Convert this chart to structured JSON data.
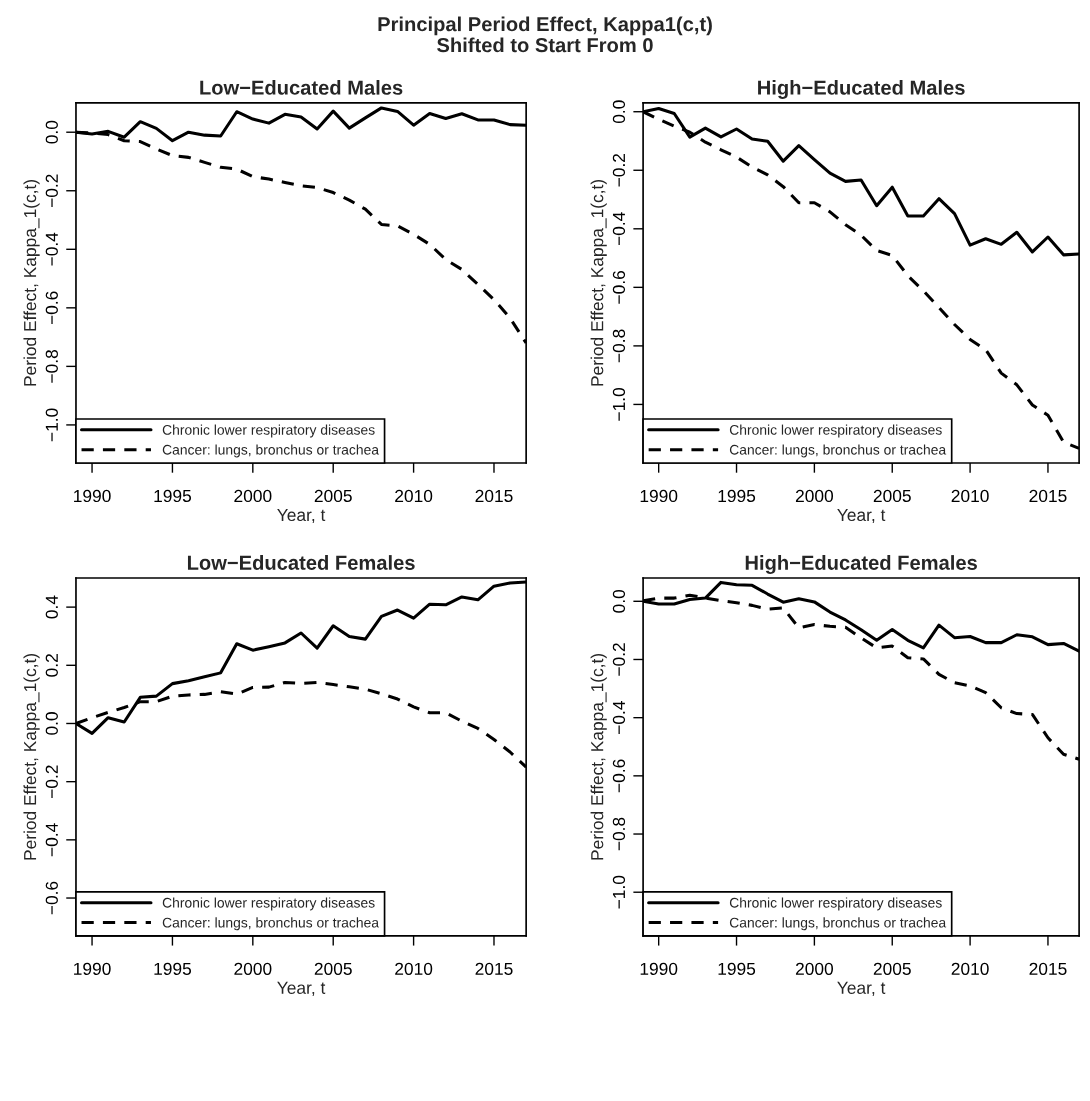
{
  "chart_data": [
    {
      "type": "line",
      "title": "Low−Educated Males",
      "xlabel": "Year, t",
      "ylabel": "Period Effect, Kappa_1(c,t)",
      "annotations": [
        "Principal Period Effect, Kappa1(c,t)\nShifted to Start From 0"
      ],
      "x": [
        1989,
        1990,
        1991,
        1992,
        1993,
        1994,
        1995,
        1996,
        1997,
        1998,
        1999,
        2000,
        2001,
        2002,
        2003,
        2004,
        2005,
        2006,
        2007,
        2008,
        2009,
        2010,
        2011,
        2012,
        2013,
        2014,
        2015,
        2016,
        2017
      ],
      "series": [
        {
          "name": "Chronic lower respiratory diseases",
          "color": "#000000",
          "line_style": "solid",
          "values": [
            0,
            -0.006,
            0.003,
            -0.017,
            0.036,
            0.013,
            -0.029,
            0,
            -0.01,
            -0.013,
            0.07,
            0.045,
            0.031,
            0.061,
            0.052,
            0.011,
            0.072,
            0.014,
            0.049,
            0.083,
            0.071,
            0.024,
            0.064,
            0.047,
            0.063,
            0.042,
            0.042,
            0.026,
            0.024
          ]
        },
        {
          "name": "Cancer: lungs, bronchus or trachea",
          "color": "#000000",
          "line_style": "dashed",
          "values": [
            0,
            -0.003,
            -0.008,
            -0.029,
            -0.032,
            -0.057,
            -0.08,
            -0.086,
            -0.103,
            -0.12,
            -0.126,
            -0.152,
            -0.16,
            -0.172,
            -0.183,
            -0.189,
            -0.206,
            -0.232,
            -0.263,
            -0.315,
            -0.32,
            -0.349,
            -0.383,
            -0.435,
            -0.469,
            -0.52,
            -0.572,
            -0.635,
            -0.72
          ]
        }
      ],
      "xlim": [
        1989,
        2017
      ],
      "xticks": [
        1990,
        1995,
        2000,
        2005,
        2010,
        2015
      ],
      "ylim": [
        -1.13,
        0.1
      ],
      "yticks": [
        {
          "value": 0,
          "label": "0.0"
        },
        {
          "value": -0.2,
          "label": "−0.2"
        },
        {
          "value": -0.4,
          "label": "−0.4"
        },
        {
          "value": -0.6,
          "label": "−0.6"
        },
        {
          "value": -0.8,
          "label": "−0.8"
        },
        {
          "value": -1.0,
          "label": "−1.0"
        }
      ],
      "legend": "bottom left",
      "grid": false
    },
    {
      "type": "line",
      "title": "High−Educated Males",
      "xlabel": "Year, t",
      "ylabel": "Period Effect, Kappa_1(c,t)",
      "x": [
        1989,
        1990,
        1991,
        1992,
        1993,
        1994,
        1995,
        1996,
        1997,
        1998,
        1999,
        2000,
        2001,
        2002,
        2003,
        2004,
        2005,
        2006,
        2007,
        2008,
        2009,
        2010,
        2011,
        2012,
        2013,
        2014,
        2015,
        2016,
        2017
      ],
      "series": [
        {
          "name": "Chronic lower respiratory diseases",
          "color": "#000000",
          "line_style": "solid",
          "values": [
            0,
            0.011,
            -0.006,
            -0.087,
            -0.056,
            -0.086,
            -0.059,
            -0.093,
            -0.101,
            -0.169,
            -0.116,
            -0.164,
            -0.21,
            -0.238,
            -0.233,
            -0.321,
            -0.258,
            -0.356,
            -0.356,
            -0.297,
            -0.348,
            -0.456,
            -0.434,
            -0.453,
            -0.412,
            -0.479,
            -0.428,
            -0.489,
            -0.486
          ]
        },
        {
          "name": "Cancer: lungs, bronchus or trachea",
          "color": "#000000",
          "line_style": "dashed",
          "values": [
            0,
            -0.026,
            -0.049,
            -0.07,
            -0.104,
            -0.13,
            -0.155,
            -0.189,
            -0.216,
            -0.256,
            -0.311,
            -0.311,
            -0.342,
            -0.386,
            -0.422,
            -0.474,
            -0.491,
            -0.56,
            -0.612,
            -0.669,
            -0.727,
            -0.778,
            -0.813,
            -0.893,
            -0.933,
            -1.002,
            -1.037,
            -1.129,
            -1.15
          ]
        }
      ],
      "xlim": [
        1989,
        2017
      ],
      "xticks": [
        1990,
        1995,
        2000,
        2005,
        2010,
        2015
      ],
      "ylim": [
        -1.2,
        0.03
      ],
      "yticks": [
        {
          "value": 0,
          "label": "0.0"
        },
        {
          "value": -0.2,
          "label": "−0.2"
        },
        {
          "value": -0.4,
          "label": "−0.4"
        },
        {
          "value": -0.6,
          "label": "−0.6"
        },
        {
          "value": -0.8,
          "label": "−0.8"
        },
        {
          "value": -1.0,
          "label": "−1.0"
        }
      ],
      "legend": "bottom left",
      "grid": false
    },
    {
      "type": "line",
      "title": "Low−Educated Females",
      "xlabel": "Year, t",
      "ylabel": "Period Effect, Kappa_1(c,t)",
      "x": [
        1989,
        1990,
        1991,
        1992,
        1993,
        1994,
        1995,
        1996,
        1997,
        1998,
        1999,
        2000,
        2001,
        2002,
        2003,
        2004,
        2005,
        2006,
        2007,
        2008,
        2009,
        2010,
        2011,
        2012,
        2013,
        2014,
        2015,
        2016,
        2017
      ],
      "series": [
        {
          "name": "Chronic lower respiratory diseases",
          "color": "#000000",
          "line_style": "solid",
          "values": [
            0,
            -0.034,
            0.02,
            0.005,
            0.09,
            0.094,
            0.137,
            0.147,
            0.161,
            0.174,
            0.274,
            0.252,
            0.264,
            0.277,
            0.311,
            0.259,
            0.336,
            0.299,
            0.29,
            0.368,
            0.39,
            0.362,
            0.41,
            0.408,
            0.435,
            0.425,
            0.472,
            0.483,
            0.486
          ]
        },
        {
          "name": "Cancer: lungs, bronchus or trachea",
          "color": "#000000",
          "line_style": "dashed",
          "values": [
            0,
            0.02,
            0.038,
            0.055,
            0.075,
            0.075,
            0.094,
            0.098,
            0.1,
            0.109,
            0.101,
            0.124,
            0.125,
            0.141,
            0.138,
            0.141,
            0.134,
            0.126,
            0.118,
            0.102,
            0.084,
            0.057,
            0.037,
            0.037,
            0.008,
            -0.017,
            -0.055,
            -0.098,
            -0.15
          ]
        }
      ],
      "xlim": [
        1989,
        2017
      ],
      "xticks": [
        1990,
        1995,
        2000,
        2005,
        2010,
        2015
      ],
      "ylim": [
        -0.73,
        0.5
      ],
      "yticks": [
        {
          "value": 0.4,
          "label": "0.4"
        },
        {
          "value": 0.2,
          "label": "0.2"
        },
        {
          "value": 0,
          "label": "0.0"
        },
        {
          "value": -0.2,
          "label": "−0.2"
        },
        {
          "value": -0.4,
          "label": "−0.4"
        },
        {
          "value": -0.6,
          "label": "−0.6"
        }
      ],
      "legend": "bottom left",
      "grid": false
    },
    {
      "type": "line",
      "title": "High−Educated Females",
      "xlabel": "Year, t",
      "ylabel": "Period Effect, Kappa_1(c,t)",
      "x": [
        1989,
        1990,
        1991,
        1992,
        1993,
        1994,
        1995,
        1996,
        1997,
        1998,
        1999,
        2000,
        2001,
        2002,
        2003,
        2004,
        2005,
        2006,
        2007,
        2008,
        2009,
        2010,
        2011,
        2012,
        2013,
        2014,
        2015,
        2016,
        2017
      ],
      "series": [
        {
          "name": "Chronic lower respiratory diseases",
          "color": "#000000",
          "line_style": "solid",
          "values": [
            0,
            -0.009,
            -0.009,
            0.006,
            0.011,
            0.065,
            0.057,
            0.055,
            0.025,
            -0.003,
            0.009,
            -0.002,
            -0.037,
            -0.064,
            -0.098,
            -0.134,
            -0.097,
            -0.134,
            -0.16,
            -0.082,
            -0.125,
            -0.121,
            -0.142,
            -0.142,
            -0.115,
            -0.122,
            -0.149,
            -0.145,
            -0.171
          ]
        },
        {
          "name": "Cancer: lungs, bronchus or trachea",
          "color": "#000000",
          "line_style": "dashed",
          "values": [
            0.002,
            0.011,
            0.011,
            0.021,
            0.011,
            0.002,
            -0.005,
            -0.014,
            -0.027,
            -0.023,
            -0.091,
            -0.08,
            -0.086,
            -0.089,
            -0.126,
            -0.16,
            -0.154,
            -0.194,
            -0.198,
            -0.251,
            -0.28,
            -0.291,
            -0.314,
            -0.366,
            -0.386,
            -0.389,
            -0.469,
            -0.526,
            -0.543
          ]
        }
      ],
      "xlim": [
        1989,
        2017
      ],
      "xticks": [
        1990,
        1995,
        2000,
        2005,
        2010,
        2015
      ],
      "ylim": [
        -1.15,
        0.08
      ],
      "yticks": [
        {
          "value": 0,
          "label": "0.0"
        },
        {
          "value": -0.2,
          "label": "−0.2"
        },
        {
          "value": -0.4,
          "label": "−0.4"
        },
        {
          "value": -0.6,
          "label": "−0.6"
        },
        {
          "value": -0.8,
          "label": "−0.8"
        },
        {
          "value": -1.0,
          "label": "−1.0"
        }
      ],
      "legend": "bottom left",
      "grid": false
    }
  ]
}
